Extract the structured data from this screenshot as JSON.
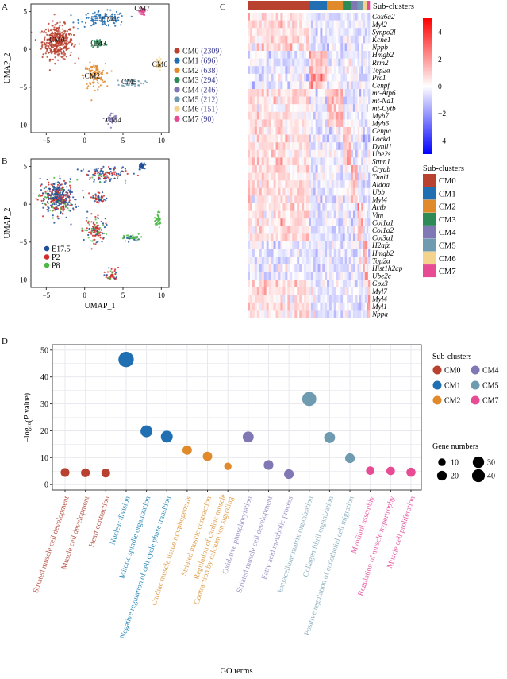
{
  "panels": {
    "A": {
      "label": "A",
      "chart_data": {
        "type": "scatter",
        "title": "",
        "xlabel": "",
        "ylabel": "UMAP_2",
        "xlim": [
          -7,
          11
        ],
        "ylim": [
          -11,
          6
        ],
        "xticks": [
          -5,
          0,
          5,
          10
        ],
        "yticks": [
          5,
          0,
          -5,
          -10
        ],
        "clusters": [
          {
            "name": "CM0",
            "count": 2309,
            "color": "#B8412F",
            "center": [
              -3.5,
              1.0
            ],
            "spread": [
              2.0,
              2.2
            ]
          },
          {
            "name": "CM1",
            "count": 696,
            "color": "#1F6FB2",
            "center": [
              2.5,
              4.0
            ],
            "spread": [
              3.0,
              1.0
            ]
          },
          {
            "name": "CM2",
            "count": 638,
            "color": "#E08A2C",
            "center": [
              1.3,
              -3.5
            ],
            "spread": [
              1.4,
              1.6
            ]
          },
          {
            "name": "CM3",
            "count": 294,
            "color": "#2E8B57",
            "center": [
              1.8,
              0.8
            ],
            "spread": [
              1.0,
              0.7
            ]
          },
          {
            "name": "CM4",
            "count": 246,
            "color": "#7F78B5",
            "center": [
              3.5,
              -9.2
            ],
            "spread": [
              0.7,
              0.8
            ]
          },
          {
            "name": "CM5",
            "count": 212,
            "color": "#6E9BB0",
            "center": [
              6.3,
              -4.4
            ],
            "spread": [
              1.5,
              0.5
            ]
          },
          {
            "name": "CM6",
            "count": 151,
            "color": "#F3D38E",
            "center": [
              9.6,
              -2.0
            ],
            "spread": [
              0.4,
              0.8
            ]
          },
          {
            "name": "CM7",
            "count": 90,
            "color": "#E64B94",
            "center": [
              7.5,
              5.0
            ],
            "spread": [
              0.4,
              0.5
            ]
          }
        ],
        "legend": [
          {
            "name": "CM0",
            "count_text": "(2309)"
          },
          {
            "name": "CM1",
            "count_text": "(696)"
          },
          {
            "name": "CM2",
            "count_text": "(638)"
          },
          {
            "name": "CM3",
            "count_text": "(294)"
          },
          {
            "name": "CM4",
            "count_text": "(246)"
          },
          {
            "name": "CM5",
            "count_text": "(212)"
          },
          {
            "name": "CM6",
            "count_text": "(151)"
          },
          {
            "name": "CM7",
            "count_text": "(90)"
          }
        ],
        "legend_position": "right"
      }
    },
    "B": {
      "label": "B",
      "chart_data": {
        "type": "scatter",
        "xlabel": "UMAP_1",
        "ylabel": "UMAP_2",
        "xlim": [
          -7,
          11
        ],
        "ylim": [
          -11,
          6
        ],
        "xticks": [
          -5,
          0,
          5,
          10
        ],
        "yticks": [
          5,
          0,
          -5,
          -10
        ],
        "groups": [
          {
            "name": "E17.5",
            "color": "#1F4E9A"
          },
          {
            "name": "P2",
            "color": "#D42A2A"
          },
          {
            "name": "P8",
            "color": "#4DB848"
          }
        ],
        "legend_position": "bottom-left"
      }
    },
    "C": {
      "label": "C",
      "chart_data": {
        "type": "heatmap",
        "annotation_title": "Sub-clusters",
        "clusters": [
          {
            "name": "CM0",
            "color": "#B8412F",
            "fraction": 0.5
          },
          {
            "name": "CM1",
            "color": "#1F6FB2",
            "fraction": 0.15
          },
          {
            "name": "CM2",
            "color": "#E08A2C",
            "fraction": 0.13
          },
          {
            "name": "CM3",
            "color": "#2E8B57",
            "fraction": 0.065
          },
          {
            "name": "CM4",
            "color": "#7F78B5",
            "fraction": 0.055
          },
          {
            "name": "CM5",
            "color": "#6E9BB0",
            "fraction": 0.045
          },
          {
            "name": "CM6",
            "color": "#F3D38E",
            "fraction": 0.03
          },
          {
            "name": "CM7",
            "color": "#E64B94",
            "fraction": 0.025
          }
        ],
        "genes": [
          "Cox6a2",
          "Myl2",
          "Synpo2l",
          "Kcne1",
          "Nppb",
          "Hmgb2",
          "Rrm2",
          "Top2a",
          "Prc1",
          "Cenpf",
          "mt-Atp6",
          "mt-Nd1",
          "mt-Cytb",
          "Myh7",
          "Myh6",
          "Cenpa",
          "Lockd",
          "Dynll1",
          "Ube2s",
          "Stmn1",
          "Cryab",
          "Tnni1",
          "Aldoa",
          "Ubb",
          "Myl4",
          "Actb",
          "Vim",
          "Col1a1",
          "Col1a2",
          "Col3a1",
          "H2afz",
          "Hmgb2",
          "Top2a",
          "Hist1h2ap",
          "Ube2c",
          "Gpx3",
          "Myl7",
          "Myl4",
          "Myl1",
          "Nppa"
        ],
        "gene_top_cluster": [
          0,
          0,
          0,
          0,
          0,
          1,
          1,
          1,
          1,
          1,
          2,
          2,
          2,
          2,
          2,
          3,
          3,
          3,
          3,
          3,
          4,
          4,
          4,
          4,
          4,
          5,
          5,
          5,
          5,
          5,
          6,
          6,
          6,
          6,
          6,
          7,
          7,
          7,
          7,
          7
        ],
        "colorbar": {
          "min": -5,
          "max": 5,
          "ticks": [
            4,
            2,
            0,
            -2,
            -4
          ],
          "low_color": "#0000FF",
          "mid_color": "#FFFFFF",
          "high_color": "#FF0000"
        },
        "legend_title": "Sub-clusters"
      }
    },
    "D": {
      "label": "D",
      "chart_data": {
        "type": "scatter",
        "xlabel": "GO terms",
        "ylabel": "-log10(P value)",
        "ylabel_parts": {
          "prefix": "–log",
          "sub": "10",
          "mid": "(",
          "italic": "P",
          "suffix": " value)"
        },
        "ylim": [
          -2,
          52
        ],
        "yticks": [
          0,
          10,
          20,
          30,
          40,
          50
        ],
        "grid": true,
        "points": [
          {
            "term": "Striated muscle cell development",
            "cluster": "CM0",
            "value": 4.5,
            "genes": 10
          },
          {
            "term": "Muscle cell development",
            "cluster": "CM0",
            "value": 4.4,
            "genes": 10
          },
          {
            "term": "Heart contraction",
            "cluster": "CM0",
            "value": 4.3,
            "genes": 10
          },
          {
            "term": "Nuclear division",
            "cluster": "CM1",
            "value": 46.5,
            "genes": 42
          },
          {
            "term": "Mitotic spindle organization",
            "cluster": "CM1",
            "value": 19.8,
            "genes": 22
          },
          {
            "term": "Negative regulation of cell cycle phase transition",
            "cluster": "CM1",
            "value": 17.8,
            "genes": 22
          },
          {
            "term": "Cardiac muscle tissue morphogenesis",
            "cluster": "CM2",
            "value": 12.8,
            "genes": 12
          },
          {
            "term": "Striated muscle contraction",
            "cluster": "CM2",
            "value": 10.5,
            "genes": 12
          },
          {
            "term": "Regulation of cardiac muscle\nContraction by calcium ion signaling",
            "cluster": "CM2",
            "value": 6.8,
            "genes": 6
          },
          {
            "term": "Oxidative phosphorylation",
            "cluster": "CM4",
            "value": 17.7,
            "genes": 18
          },
          {
            "term": "Striated muscle cell development",
            "cluster": "CM4",
            "value": 7.3,
            "genes": 13
          },
          {
            "term": "Fatty acid metabolic process",
            "cluster": "CM4",
            "value": 3.9,
            "genes": 13
          },
          {
            "term": "Extracellular matrix organization",
            "cluster": "CM5",
            "value": 31.8,
            "genes": 34
          },
          {
            "term": "Collagen fibril organization",
            "cluster": "CM5",
            "value": 17.5,
            "genes": 18
          },
          {
            "term": "Positive regulation of endothelial cell migration",
            "cluster": "CM5",
            "value": 9.8,
            "genes": 13
          },
          {
            "term": "Myofibril assembly",
            "cluster": "CM7",
            "value": 5.2,
            "genes": 9
          },
          {
            "term": "Regulation of muscle hypertrophy",
            "cluster": "CM7",
            "value": 5.1,
            "genes": 9
          },
          {
            "term": "Muscle cell proliferation",
            "cluster": "CM7",
            "value": 4.6,
            "genes": 11
          }
        ],
        "cluster_colors": {
          "CM0": "#B8412F",
          "CM1": "#1F6FB2",
          "CM2": "#E08A2C",
          "CM4": "#7F78B5",
          "CM5": "#6E9BB0",
          "CM7": "#E64B94"
        },
        "label_colors": {
          "CM0": "#B8574A",
          "CM1": "#2E8BB8",
          "CM2": "#E0A050",
          "CM4": "#9A94C6",
          "CM5": "#8FB3C0",
          "CM7": "#E45FA4"
        },
        "legend_title": "Sub-clusters",
        "legend_items": [
          "CM0",
          "CM4",
          "CM1",
          "CM5",
          "CM2",
          "CM7"
        ],
        "size_legend_title": "Gene numbers",
        "size_legend": [
          10,
          30,
          20,
          40
        ],
        "legend_position": "right"
      }
    }
  }
}
